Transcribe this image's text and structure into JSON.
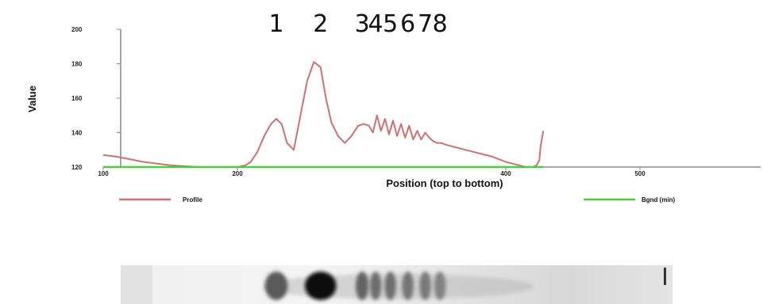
{
  "chart_data": {
    "type": "line",
    "xlabel": "Position (top to bottom)",
    "ylabel": "Value",
    "xlim": [
      100,
      520
    ],
    "ylim": [
      120,
      200
    ],
    "xticks": [
      {
        "value": 100,
        "label": "100"
      },
      {
        "value": 200,
        "label": "200"
      },
      {
        "value": 400,
        "label": "400"
      },
      {
        "value": 500,
        "label": "500"
      }
    ],
    "yticks": [
      {
        "value": 120,
        "label": "120"
      },
      {
        "value": 140,
        "label": "140"
      },
      {
        "value": 160,
        "label": "160"
      },
      {
        "value": 180,
        "label": "180"
      },
      {
        "value": 200,
        "label": "200"
      }
    ],
    "peak_labels": [
      {
        "label": "1",
        "x": 229
      },
      {
        "label": "2",
        "x": 262
      },
      {
        "label": "3",
        "x": 293
      },
      {
        "label": "4",
        "x": 303
      },
      {
        "label": "5",
        "x": 314
      },
      {
        "label": "6",
        "x": 327
      },
      {
        "label": "7",
        "x": 340
      },
      {
        "label": "8",
        "x": 351
      }
    ],
    "series": [
      {
        "name": "Profile",
        "color": "#d07070",
        "x": [
          100,
          110,
          130,
          150,
          170,
          190,
          200,
          206,
          210,
          215,
          220,
          225,
          229,
          233,
          237,
          242,
          247,
          252,
          257,
          262,
          266,
          270,
          275,
          280,
          285,
          290,
          294,
          298,
          301,
          304,
          307,
          310,
          313,
          316,
          319,
          322,
          325,
          328,
          331,
          334,
          337,
          340,
          343,
          346,
          349,
          352,
          355,
          360,
          370,
          380,
          390,
          400,
          410,
          415,
          420,
          423,
          425,
          426,
          428
        ],
        "values": [
          127,
          126,
          123,
          121,
          120,
          120,
          120,
          121,
          123,
          129,
          138,
          145,
          148,
          145,
          134,
          130,
          150,
          170,
          181,
          178,
          160,
          146,
          138,
          134,
          138,
          144,
          145,
          144,
          140,
          150,
          141,
          148,
          139,
          147,
          138,
          145,
          137,
          144,
          136,
          141,
          136,
          140,
          137,
          135,
          134,
          134,
          133,
          132,
          130,
          128,
          126,
          123,
          121,
          120,
          120,
          121,
          124,
          132,
          141
        ]
      },
      {
        "name": "Bgnd (min)",
        "color": "#4ccd3c",
        "x": [
          100,
          428
        ],
        "values": [
          120,
          120
        ]
      }
    ],
    "legend": [
      {
        "label": "Profile",
        "color": "#d07070",
        "position": "bottom-left"
      },
      {
        "label": "Bgnd (min)",
        "color": "#4ccd3c",
        "position": "bottom-right"
      }
    ]
  },
  "gel": {
    "bands": [
      {
        "x": 229,
        "darkness": 0.55,
        "width": 16
      },
      {
        "x": 262,
        "darkness": 0.95,
        "width": 22
      },
      {
        "x": 293,
        "darkness": 0.5,
        "width": 9
      },
      {
        "x": 303,
        "darkness": 0.45,
        "width": 8
      },
      {
        "x": 314,
        "darkness": 0.45,
        "width": 8
      },
      {
        "x": 327,
        "darkness": 0.42,
        "width": 8
      },
      {
        "x": 340,
        "darkness": 0.4,
        "width": 8
      },
      {
        "x": 351,
        "darkness": 0.35,
        "width": 8
      }
    ]
  }
}
